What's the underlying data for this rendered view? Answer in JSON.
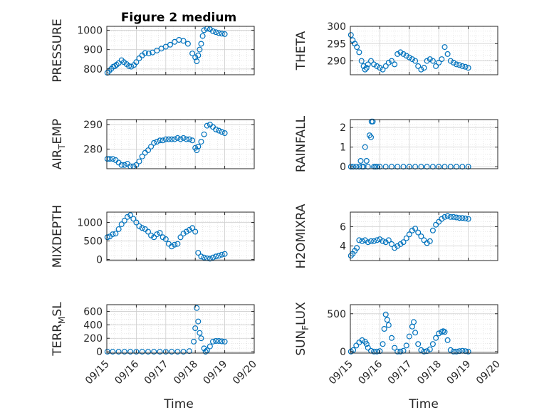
{
  "figure_title": "Figure 2 medium",
  "marker_color": "#0072bd",
  "chart_data": [
    {
      "type": "scatter",
      "title": "Figure 2 medium",
      "ylabel": "PRESSURE",
      "ylim": [
        770,
        1020
      ],
      "yticks": [
        800,
        900,
        1000
      ],
      "xlim": [
        0,
        5
      ],
      "xticks": [
        "09/15",
        "09/16",
        "09/17",
        "09/18",
        "09/19",
        "09/20"
      ],
      "x": [
        0.02,
        0.08,
        0.15,
        0.22,
        0.28,
        0.33,
        0.4,
        0.5,
        0.58,
        0.67,
        0.75,
        0.83,
        0.92,
        1.0,
        1.1,
        1.2,
        1.3,
        1.42,
        1.55,
        1.7,
        1.85,
        2.0,
        2.15,
        2.3,
        2.45,
        2.6,
        2.75,
        2.9,
        3.0,
        3.05,
        3.1,
        3.15,
        3.2,
        3.25,
        3.3,
        3.4,
        3.5,
        3.6,
        3.7,
        3.8,
        3.9,
        4.0
      ],
      "y": [
        780,
        790,
        800,
        812,
        815,
        822,
        830,
        845,
        835,
        825,
        815,
        812,
        820,
        835,
        855,
        870,
        882,
        880,
        885,
        895,
        905,
        915,
        925,
        940,
        950,
        945,
        930,
        880,
        860,
        840,
        870,
        900,
        930,
        970,
        1000,
        1008,
        1005,
        995,
        990,
        985,
        982,
        980
      ]
    },
    {
      "type": "scatter",
      "title": "",
      "ylabel": "THETA",
      "ylim": [
        286,
        300
      ],
      "yticks": [
        290,
        295,
        300
      ],
      "xlim": [
        0,
        5
      ],
      "xticks": [
        "09/15",
        "09/16",
        "09/17",
        "09/18",
        "09/19",
        "09/20"
      ],
      "x": [
        0.02,
        0.08,
        0.15,
        0.22,
        0.3,
        0.38,
        0.45,
        0.5,
        0.55,
        0.6,
        0.7,
        0.8,
        0.9,
        1.0,
        1.1,
        1.2,
        1.3,
        1.4,
        1.5,
        1.6,
        1.7,
        1.8,
        1.9,
        2.0,
        2.1,
        2.2,
        2.3,
        2.4,
        2.5,
        2.6,
        2.7,
        2.8,
        2.9,
        3.0,
        3.1,
        3.2,
        3.3,
        3.4,
        3.5,
        3.6,
        3.7,
        3.8,
        3.9,
        4.0
      ],
      "y": [
        297.5,
        296,
        295,
        294,
        292.5,
        290,
        288.5,
        287.5,
        288,
        289,
        290,
        289,
        288.5,
        288,
        287.5,
        288.5,
        289.5,
        290,
        289,
        292,
        292.5,
        292,
        291.5,
        291,
        290.5,
        290,
        288.5,
        287.5,
        288,
        290,
        290.5,
        290,
        288.5,
        289.5,
        290.5,
        294,
        292,
        290,
        289.5,
        289,
        288.8,
        288.5,
        288.3,
        288
      ]
    },
    {
      "type": "scatter",
      "title": "",
      "ylabel": "AIR_TEMP",
      "ylim": [
        272,
        292
      ],
      "yticks": [
        280,
        290
      ],
      "xlim": [
        0,
        5
      ],
      "xticks": [
        "09/15",
        "09/16",
        "09/17",
        "09/18",
        "09/19",
        "09/20"
      ],
      "x": [
        0.02,
        0.1,
        0.2,
        0.3,
        0.4,
        0.5,
        0.6,
        0.7,
        0.8,
        0.9,
        1.0,
        1.1,
        1.2,
        1.3,
        1.4,
        1.5,
        1.6,
        1.7,
        1.8,
        1.9,
        2.0,
        2.1,
        2.2,
        2.3,
        2.4,
        2.5,
        2.6,
        2.7,
        2.8,
        2.9,
        3.0,
        3.05,
        3.1,
        3.2,
        3.3,
        3.4,
        3.5,
        3.6,
        3.7,
        3.8,
        3.9,
        4.0
      ],
      "y": [
        276,
        276,
        276,
        275.5,
        274.5,
        273.5,
        273.5,
        274,
        273,
        273,
        273.5,
        275,
        277,
        278.5,
        279.5,
        281,
        282.5,
        283,
        283.5,
        283.5,
        284,
        284,
        284,
        284,
        284.5,
        284,
        284.5,
        284,
        284,
        283.5,
        280.5,
        279.5,
        281,
        283,
        286,
        289.5,
        290,
        289,
        288,
        287.5,
        287,
        286.5
      ]
    },
    {
      "type": "scatter",
      "title": "",
      "ylabel": "RAINFALL",
      "ylim": [
        -0.1,
        2.4
      ],
      "yticks": [
        0,
        1,
        2
      ],
      "xlim": [
        0,
        5
      ],
      "xticks": [
        "09/15",
        "09/16",
        "09/17",
        "09/18",
        "09/19",
        "09/20"
      ],
      "x": [
        0.02,
        0.1,
        0.2,
        0.3,
        0.35,
        0.4,
        0.45,
        0.5,
        0.55,
        0.6,
        0.65,
        0.7,
        0.72,
        0.76,
        0.8,
        0.85,
        0.9,
        1.0,
        1.2,
        1.4,
        1.6,
        1.8,
        2.0,
        2.2,
        2.4,
        2.6,
        2.8,
        3.0,
        3.2,
        3.4,
        3.6,
        3.8,
        4.0
      ],
      "y": [
        0,
        0,
        0,
        0,
        0.3,
        0,
        0,
        1.0,
        0.3,
        0,
        1.6,
        1.5,
        2.3,
        2.3,
        0,
        0,
        0,
        0,
        0,
        0,
        0,
        0,
        0,
        0,
        0,
        0,
        0,
        0,
        0,
        0,
        0,
        0,
        0
      ]
    },
    {
      "type": "scatter",
      "title": "",
      "ylabel": "MIXDEPTH",
      "ylim": [
        -30,
        1280
      ],
      "yticks": [
        0,
        500,
        1000
      ],
      "xlim": [
        0,
        5
      ],
      "xticks": [
        "09/15",
        "09/16",
        "09/17",
        "09/18",
        "09/19",
        "09/20"
      ],
      "x": [
        0.02,
        0.1,
        0.2,
        0.3,
        0.4,
        0.5,
        0.6,
        0.7,
        0.8,
        0.9,
        1.0,
        1.1,
        1.2,
        1.3,
        1.4,
        1.5,
        1.6,
        1.7,
        1.8,
        1.9,
        2.0,
        2.1,
        2.2,
        2.3,
        2.4,
        2.5,
        2.6,
        2.7,
        2.8,
        2.9,
        3.0,
        3.1,
        3.2,
        3.3,
        3.4,
        3.5,
        3.6,
        3.7,
        3.8,
        3.9,
        4.0
      ],
      "y": [
        600,
        620,
        680,
        700,
        820,
        950,
        1050,
        1150,
        1200,
        1100,
        1000,
        900,
        850,
        820,
        750,
        650,
        600,
        680,
        720,
        600,
        550,
        420,
        350,
        400,
        420,
        600,
        700,
        750,
        800,
        850,
        750,
        180,
        80,
        50,
        30,
        20,
        50,
        80,
        100,
        130,
        150
      ]
    },
    {
      "type": "scatter",
      "title": "",
      "ylabel": "H2OMIXRA",
      "ylim": [
        2.5,
        7.5
      ],
      "yticks": [
        4,
        6
      ],
      "xlim": [
        0,
        5
      ],
      "xticks": [
        "09/15",
        "09/16",
        "09/17",
        "09/18",
        "09/19",
        "09/20"
      ],
      "x": [
        0.02,
        0.08,
        0.15,
        0.22,
        0.3,
        0.4,
        0.5,
        0.6,
        0.7,
        0.8,
        0.9,
        1.0,
        1.1,
        1.2,
        1.3,
        1.4,
        1.5,
        1.6,
        1.7,
        1.8,
        1.9,
        2.0,
        2.1,
        2.2,
        2.3,
        2.4,
        2.5,
        2.6,
        2.7,
        2.8,
        2.9,
        3.0,
        3.1,
        3.2,
        3.3,
        3.4,
        3.5,
        3.6,
        3.7,
        3.8,
        3.9,
        4.0
      ],
      "y": [
        3.0,
        3.2,
        3.5,
        3.8,
        4.6,
        4.5,
        4.6,
        4.4,
        4.5,
        4.5,
        4.6,
        4.7,
        4.5,
        4.4,
        4.6,
        4.2,
        3.8,
        4.0,
        4.2,
        4.4,
        4.8,
        5.2,
        5.6,
        5.8,
        5.4,
        5.0,
        4.6,
        4.3,
        4.5,
        5.6,
        6.2,
        6.5,
        6.8,
        7.0,
        7.1,
        7.0,
        7.0,
        6.95,
        6.9,
        6.9,
        6.85,
        6.8
      ]
    },
    {
      "type": "scatter",
      "title": "",
      "ylabel": "TERR_MSL",
      "ylim": [
        -20,
        700
      ],
      "yticks": [
        0,
        200,
        400,
        600
      ],
      "xlim": [
        0,
        5
      ],
      "xticks": [
        "09/15",
        "09/16",
        "09/17",
        "09/18",
        "09/19",
        "09/20"
      ],
      "x": [
        0.02,
        0.2,
        0.4,
        0.6,
        0.8,
        1.0,
        1.2,
        1.4,
        1.6,
        1.8,
        2.0,
        2.2,
        2.4,
        2.6,
        2.8,
        2.95,
        3.0,
        3.05,
        3.1,
        3.15,
        3.2,
        3.3,
        3.35,
        3.4,
        3.5,
        3.6,
        3.7,
        3.8,
        3.9,
        4.0
      ],
      "y": [
        0,
        0,
        0,
        0,
        0,
        0,
        0,
        0,
        0,
        0,
        0,
        0,
        0,
        0,
        10,
        150,
        350,
        650,
        450,
        280,
        200,
        50,
        0,
        20,
        80,
        150,
        160,
        160,
        155,
        150
      ]
    },
    {
      "type": "scatter",
      "title": "",
      "ylabel": "SUN_FLUX",
      "ylim": [
        -20,
        620
      ],
      "yticks": [
        0,
        500
      ],
      "xlim": [
        0,
        5
      ],
      "xticks": [
        "09/15",
        "09/16",
        "09/17",
        "09/18",
        "09/19",
        "09/20"
      ],
      "x": [
        0.02,
        0.1,
        0.2,
        0.3,
        0.4,
        0.5,
        0.55,
        0.6,
        0.7,
        0.8,
        0.9,
        1.0,
        1.1,
        1.15,
        1.2,
        1.25,
        1.3,
        1.4,
        1.5,
        1.6,
        1.7,
        1.8,
        1.9,
        2.0,
        2.1,
        2.15,
        2.2,
        2.3,
        2.4,
        2.5,
        2.6,
        2.7,
        2.8,
        2.9,
        3.0,
        3.1,
        3.15,
        3.2,
        3.3,
        3.4,
        3.5,
        3.6,
        3.7,
        3.8,
        3.9,
        4.0
      ],
      "y": [
        0,
        20,
        80,
        120,
        150,
        130,
        100,
        50,
        10,
        0,
        0,
        5,
        100,
        300,
        490,
        420,
        350,
        180,
        50,
        0,
        0,
        10,
        80,
        200,
        330,
        390,
        250,
        100,
        20,
        0,
        5,
        30,
        100,
        180,
        240,
        260,
        270,
        260,
        150,
        20,
        0,
        0,
        5,
        10,
        5,
        0
      ]
    }
  ],
  "shared_xlabel": "Time"
}
